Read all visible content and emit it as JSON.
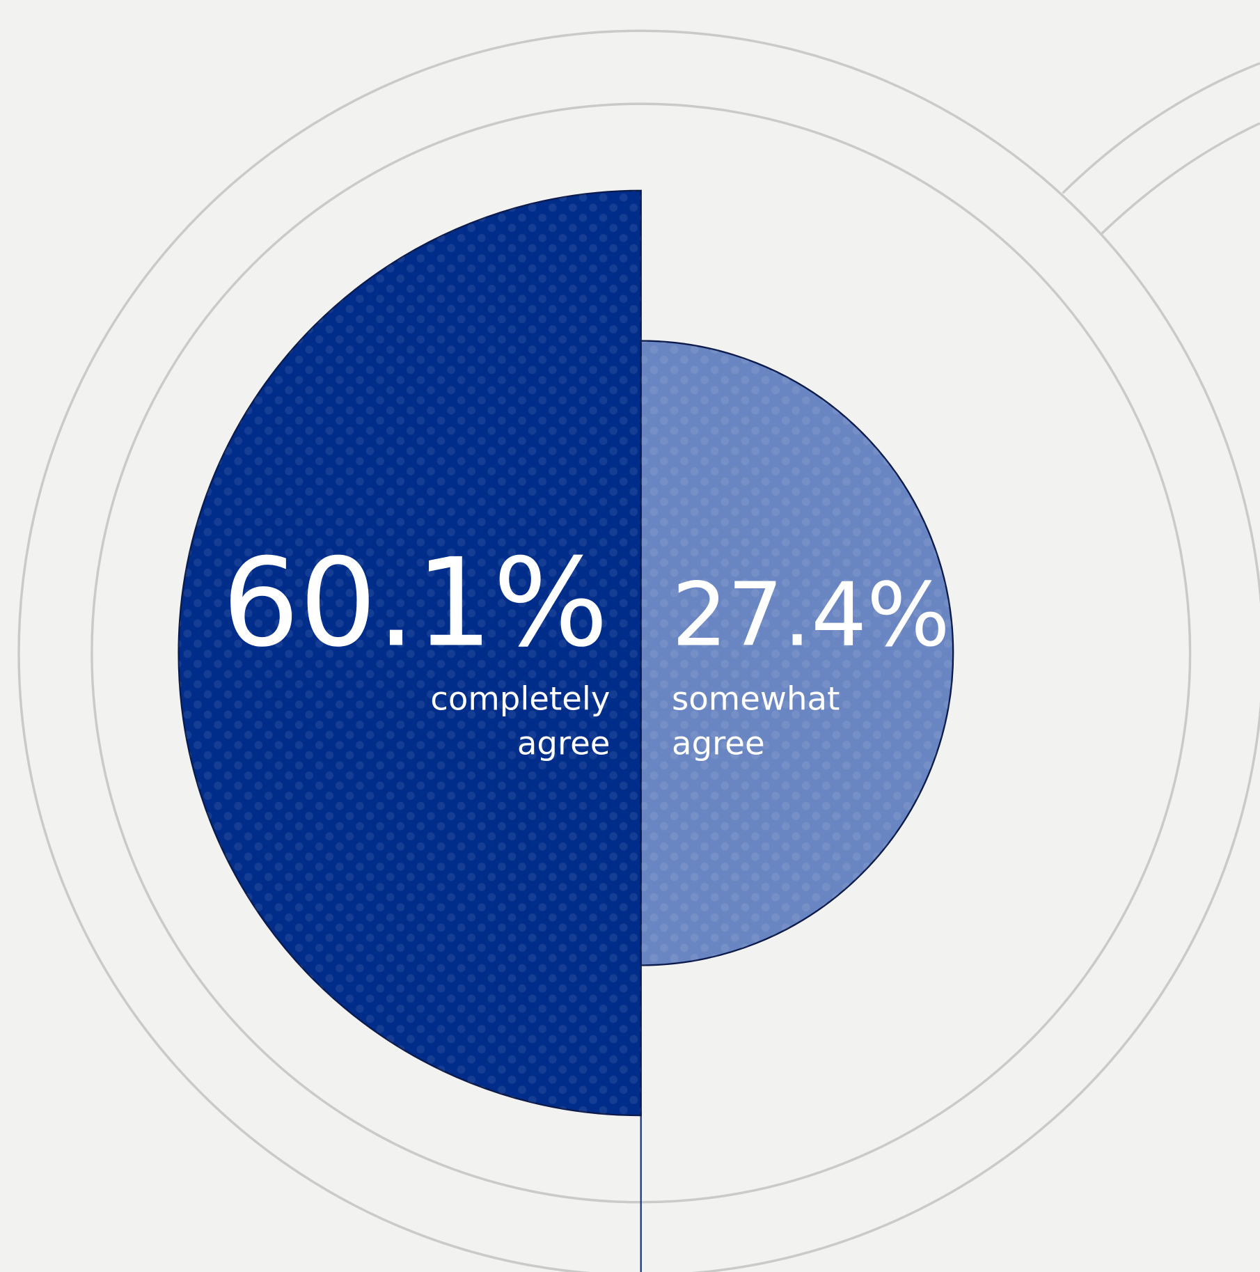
{
  "chart_data": {
    "type": "half-circle",
    "categories": [
      "completely agree",
      "somewhat agree"
    ],
    "values": [
      60.1,
      27.4
    ],
    "value_labels": [
      "60.1%",
      "27.4%"
    ],
    "colors": [
      "#002d8a",
      "#6a86c2"
    ]
  }
}
